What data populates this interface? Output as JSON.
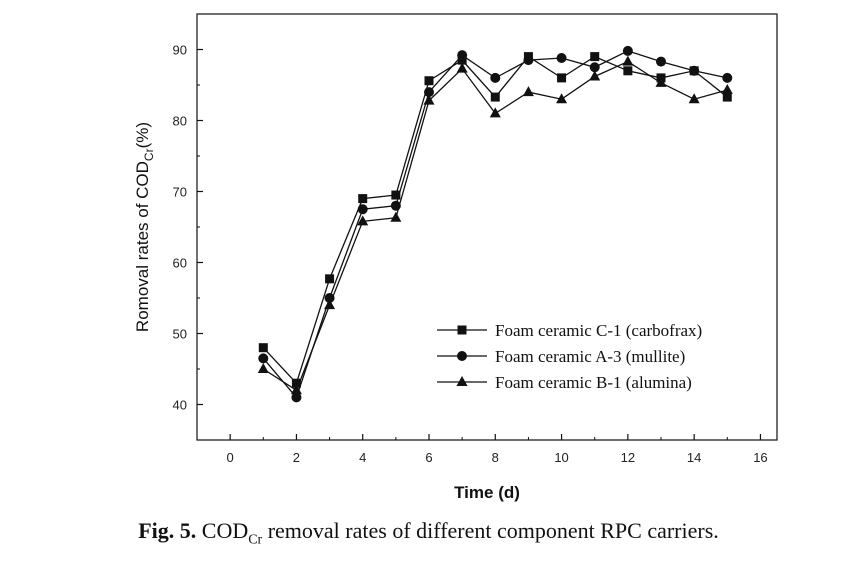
{
  "chart_data": {
    "type": "line",
    "xlabel": "Time (d)",
    "ylabel": {
      "main": "Romoval rates of COD",
      "sub": "Cr",
      "suffix": "(%)"
    },
    "xlim": [
      -1,
      16.5
    ],
    "ylim": [
      35,
      95
    ],
    "xticks": [
      0,
      2,
      4,
      6,
      8,
      10,
      12,
      14,
      16
    ],
    "yticks": [
      40,
      50,
      60,
      70,
      80,
      90
    ],
    "x": [
      1,
      2,
      3,
      4,
      5,
      6,
      7,
      8,
      9,
      10,
      11,
      12,
      13,
      14,
      15
    ],
    "series": [
      {
        "name": "Foam ceramic C-1 (carbofrax)",
        "marker": "square",
        "values": [
          48,
          43,
          57.7,
          69,
          69.5,
          85.6,
          88.5,
          83.3,
          89,
          86,
          89,
          87,
          86,
          87,
          83.3
        ]
      },
      {
        "name": "Foam ceramic A-3 (mullite)",
        "marker": "circle",
        "values": [
          46.5,
          41,
          55,
          67.5,
          68,
          84,
          89.2,
          86,
          88.5,
          88.8,
          87.5,
          89.8,
          88.3,
          87,
          86
        ]
      },
      {
        "name": "Foam ceramic B-1 (alumina)",
        "marker": "triangle",
        "values": [
          45,
          42,
          54,
          65.8,
          66.3,
          82.8,
          87.3,
          81,
          84,
          83,
          86.2,
          88.3,
          85.3,
          83,
          84.3
        ]
      }
    ],
    "legend": "bottom-right-inside",
    "grid": false
  },
  "caption": {
    "label": "Fig. 5.",
    "pre": " COD",
    "sub": "Cr",
    "post": " removal rates of different component RPC carriers."
  }
}
